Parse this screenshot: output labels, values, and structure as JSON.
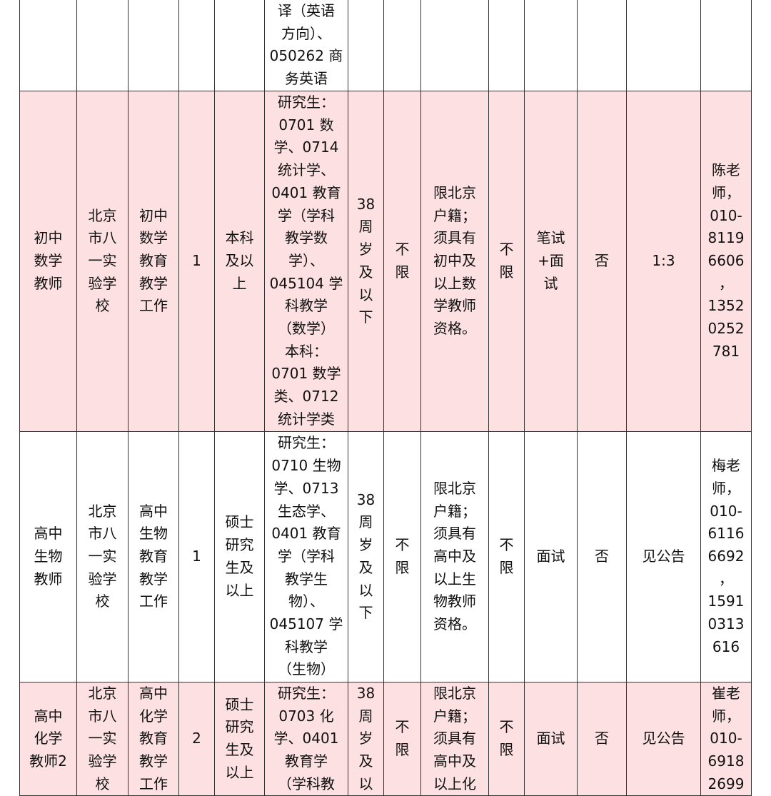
{
  "rows": [
    {
      "style": "white",
      "cells": [
        [],
        [],
        [],
        [],
        [],
        [
          "译（英语",
          "方向）、",
          "050262 商",
          "务英语"
        ],
        [],
        [],
        [],
        [],
        [],
        [],
        [],
        []
      ]
    },
    {
      "style": "pink",
      "cells": [
        [
          "初中",
          "数学",
          "教师"
        ],
        [
          "北京",
          "市八",
          "一实",
          "验学",
          "校"
        ],
        [
          "初中",
          "数学",
          "教育",
          "教学",
          "工作"
        ],
        [
          "1"
        ],
        [
          "本科",
          "及以",
          "上"
        ],
        [
          "研究生：",
          "0701 数",
          "学、0714",
          "统计学、",
          "0401 教育",
          "学（学科",
          "教学数",
          "学）、",
          "045104 学",
          "科教学",
          "（数学）",
          "本科：",
          "0701 数学",
          "类、0712",
          "统计学类"
        ],
        [
          "38",
          "周",
          "岁",
          "及",
          "以",
          "下"
        ],
        [
          "不",
          "限"
        ],
        [
          "限北京",
          "户籍；",
          "须具有",
          "初中及",
          "以上数",
          "学教师",
          "资格。"
        ],
        [
          "不",
          "限"
        ],
        [
          "笔试",
          "+面",
          "试"
        ],
        [
          "否"
        ],
        [
          "1:3"
        ],
        [
          "陈老",
          "师，",
          "010-",
          "8119",
          "6606",
          "，",
          "1352",
          "0252",
          "781"
        ]
      ]
    },
    {
      "style": "white",
      "cells": [
        [
          "高中",
          "生物",
          "教师"
        ],
        [
          "北京",
          "市八",
          "一实",
          "验学",
          "校"
        ],
        [
          "高中",
          "生物",
          "教育",
          "教学",
          "工作"
        ],
        [
          "1"
        ],
        [
          "硕士",
          "研究",
          "生及",
          "以上"
        ],
        [
          "研究生：",
          "0710 生物",
          "学、0713",
          "生态学、",
          "0401 教育",
          "学（学科",
          "教学生",
          "物）、",
          "045107 学",
          "科教学",
          "（生物）"
        ],
        [
          "38",
          "周",
          "岁",
          "及",
          "以",
          "下"
        ],
        [
          "不",
          "限"
        ],
        [
          "限北京",
          "户籍；",
          "须具有",
          "高中及",
          "以上生",
          "物教师",
          "资格。"
        ],
        [
          "不",
          "限"
        ],
        [
          "面试"
        ],
        [
          "否"
        ],
        [
          "见公告"
        ],
        [
          "梅老",
          "师，",
          "010-",
          "6116",
          "6692",
          "，",
          "1591",
          "0313",
          "616"
        ]
      ]
    },
    {
      "style": "pink",
      "cells": [
        [
          "高中",
          "化学",
          "教师2"
        ],
        [
          "北京",
          "市八",
          "一实",
          "验学",
          "校"
        ],
        [
          "高中",
          "化学",
          "教育",
          "教学",
          "工作"
        ],
        [
          "2"
        ],
        [
          "硕士",
          "研究",
          "生及",
          "以上"
        ],
        [
          "研究生：",
          "0703 化",
          "学、0401",
          "教育学",
          "（学科教"
        ],
        [
          "38",
          "周",
          "岁",
          "及",
          "以"
        ],
        [
          "不",
          "限"
        ],
        [
          "限北京",
          "户籍；",
          "须具有",
          "高中及",
          "以上化"
        ],
        [
          "不",
          "限"
        ],
        [
          "面试"
        ],
        [
          "否"
        ],
        [
          "见公告"
        ],
        [
          "崔老",
          "师，",
          "010-",
          "6918",
          "2699"
        ]
      ]
    }
  ]
}
